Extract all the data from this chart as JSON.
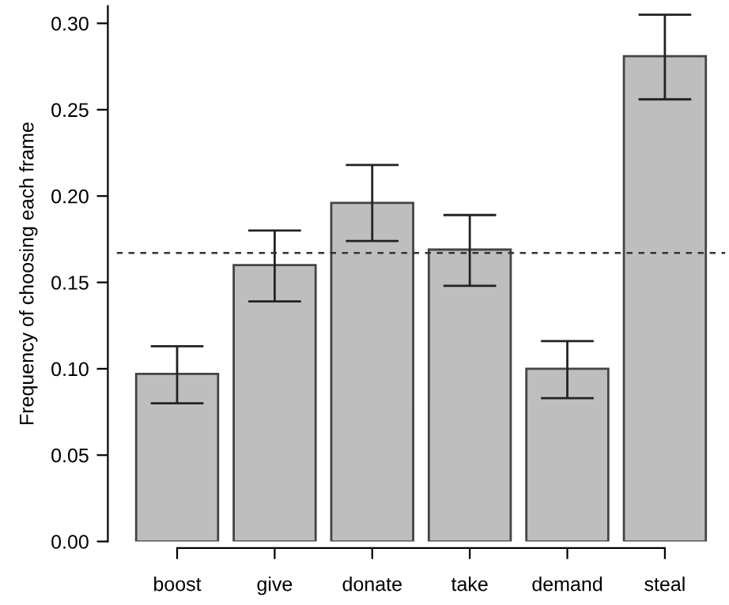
{
  "chart_data": {
    "type": "bar",
    "ylabel": "Frequency of choosing each frame",
    "categories": [
      "boost",
      "give",
      "donate",
      "take",
      "demand",
      "steal"
    ],
    "values": [
      0.097,
      0.16,
      0.196,
      0.169,
      0.1,
      0.281
    ],
    "errors": [
      [
        0.08,
        0.113
      ],
      [
        0.139,
        0.18
      ],
      [
        0.174,
        0.218
      ],
      [
        0.148,
        0.189
      ],
      [
        0.083,
        0.116
      ],
      [
        0.256,
        0.305
      ]
    ],
    "color": "#bebebe",
    "ylim": [
      0,
      0.31
    ],
    "yticks": [
      {
        "value": 0,
        "label": "0.00"
      },
      {
        "value": 0.05,
        "label": "0.05"
      },
      {
        "value": 0.1,
        "label": "0.10"
      },
      {
        "value": 0.15,
        "label": "0.15"
      },
      {
        "value": 0.2,
        "label": "0.20"
      },
      {
        "value": 0.25,
        "label": "0.25"
      },
      {
        "value": 0.3,
        "label": "0.30"
      }
    ],
    "ref_lines": [
      {
        "axis": "y",
        "value": 0.167,
        "line_style": "dashed",
        "color": "#333333"
      }
    ],
    "grid": false,
    "legend": false
  }
}
